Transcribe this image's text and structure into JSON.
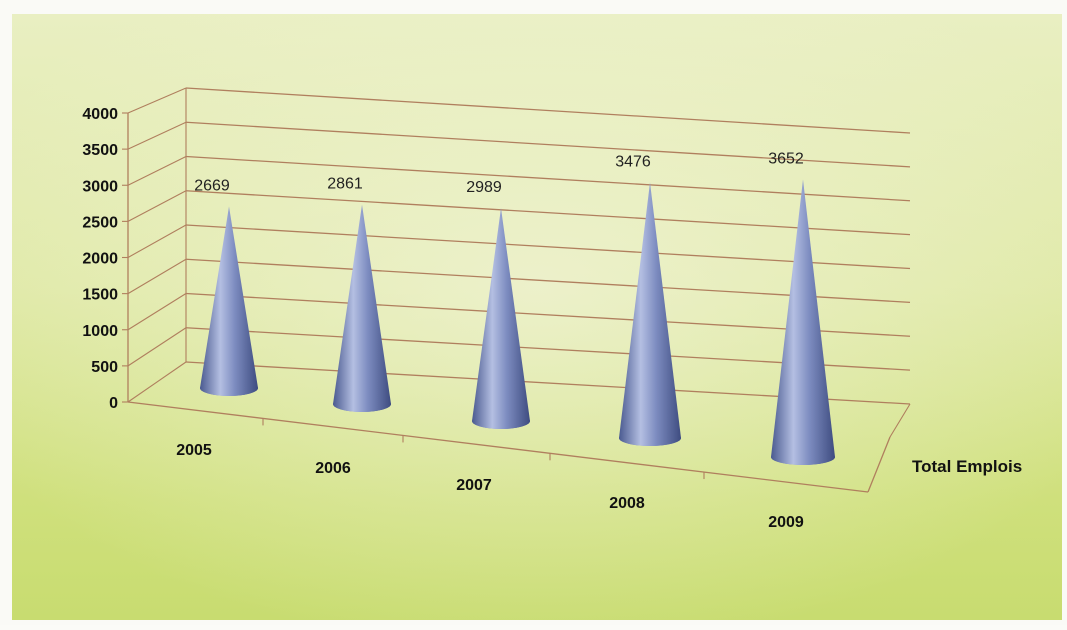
{
  "chart_data": {
    "type": "bar",
    "bar_shape": "cone",
    "style": "3d-perspective",
    "categories": [
      "2005",
      "2006",
      "2007",
      "2008",
      "2009"
    ],
    "series": [
      {
        "name": "Total Emplois",
        "values": [
          2669,
          2861,
          2989,
          3476,
          3652
        ],
        "value_labels": [
          "2669",
          "2861",
          "2989",
          "3476",
          "3652"
        ]
      }
    ],
    "y_ticks": [
      "0",
      "500",
      "1000",
      "1500",
      "2000",
      "2500",
      "3000",
      "3500",
      "4000"
    ],
    "ylim": [
      0,
      4000
    ],
    "grid": true,
    "colors": {
      "bar": "#6f7fb3",
      "bar_highlight": "#b9c2e2",
      "bar_shadow": "#3c4b80",
      "grid": "#b07f5e",
      "background": "#dfe8a6"
    }
  }
}
